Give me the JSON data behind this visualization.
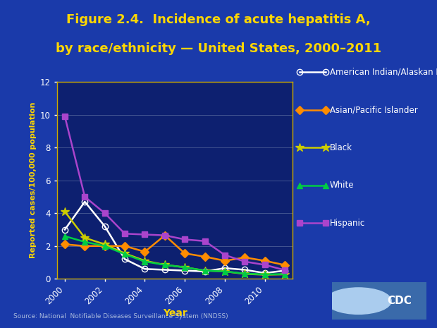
{
  "title_line1": "Figure 2.4.  Incidence of acute hepatitis A,",
  "title_line2": "by race/ethnicity — United States, 2000–2011",
  "xlabel": "Year",
  "ylabel": "Reported cases/100,000 population",
  "source": "Source: National  Notifiable Diseases Surveillance System (NNDSS)",
  "bg_color": "#1535a0",
  "plot_bg": "#0d2070",
  "title_color": "#ffd700",
  "axis_label_color": "#ffd700",
  "tick_color": "#ffffff",
  "spine_color": "#ffd700",
  "years": [
    2000,
    2001,
    2002,
    2003,
    2004,
    2005,
    2006,
    2007,
    2008,
    2009,
    2010,
    2011
  ],
  "series": [
    {
      "name": "American Indian/Alaskan Native",
      "values": [
        3.0,
        4.7,
        3.2,
        1.2,
        0.6,
        0.55,
        0.5,
        0.45,
        0.65,
        0.55,
        0.35,
        0.5
      ],
      "color": "#ffffff",
      "marker": "o",
      "hollow": true,
      "linewidth": 1.8,
      "markersize": 6
    },
    {
      "name": "Asian/Pacific Islander",
      "values": [
        2.1,
        2.0,
        2.0,
        2.0,
        1.65,
        2.65,
        1.55,
        1.35,
        1.1,
        1.3,
        1.1,
        0.84
      ],
      "color": "#ff8c00",
      "marker": "D",
      "hollow": false,
      "linewidth": 1.8,
      "markersize": 6
    },
    {
      "name": "Black",
      "values": [
        4.1,
        2.5,
        2.1,
        1.55,
        1.1,
        0.85,
        0.7,
        0.5,
        0.45,
        0.3,
        0.25,
        0.27
      ],
      "color": "#cccc00",
      "marker": "*",
      "hollow": false,
      "linewidth": 1.8,
      "markersize": 9
    },
    {
      "name": "White",
      "values": [
        2.6,
        2.25,
        2.0,
        1.5,
        1.05,
        0.85,
        0.7,
        0.5,
        0.45,
        0.32,
        0.27,
        0.29
      ],
      "color": "#00cc44",
      "marker": "^",
      "hollow": false,
      "linewidth": 1.8,
      "markersize": 6
    },
    {
      "name": "Hispanic",
      "values": [
        9.9,
        5.0,
        4.0,
        2.75,
        2.7,
        2.65,
        2.4,
        2.3,
        1.45,
        1.05,
        0.85,
        0.53
      ],
      "color": "#aa44cc",
      "marker": "s",
      "hollow": false,
      "linewidth": 1.8,
      "markersize": 6
    }
  ],
  "ylim": [
    0,
    12
  ],
  "yticks": [
    0,
    2,
    4,
    6,
    8,
    10,
    12
  ],
  "xticks": [
    2000,
    2002,
    2004,
    2006,
    2008,
    2010
  ],
  "legend_text_color": "#ffffff",
  "legend_fontsize": 8.5
}
